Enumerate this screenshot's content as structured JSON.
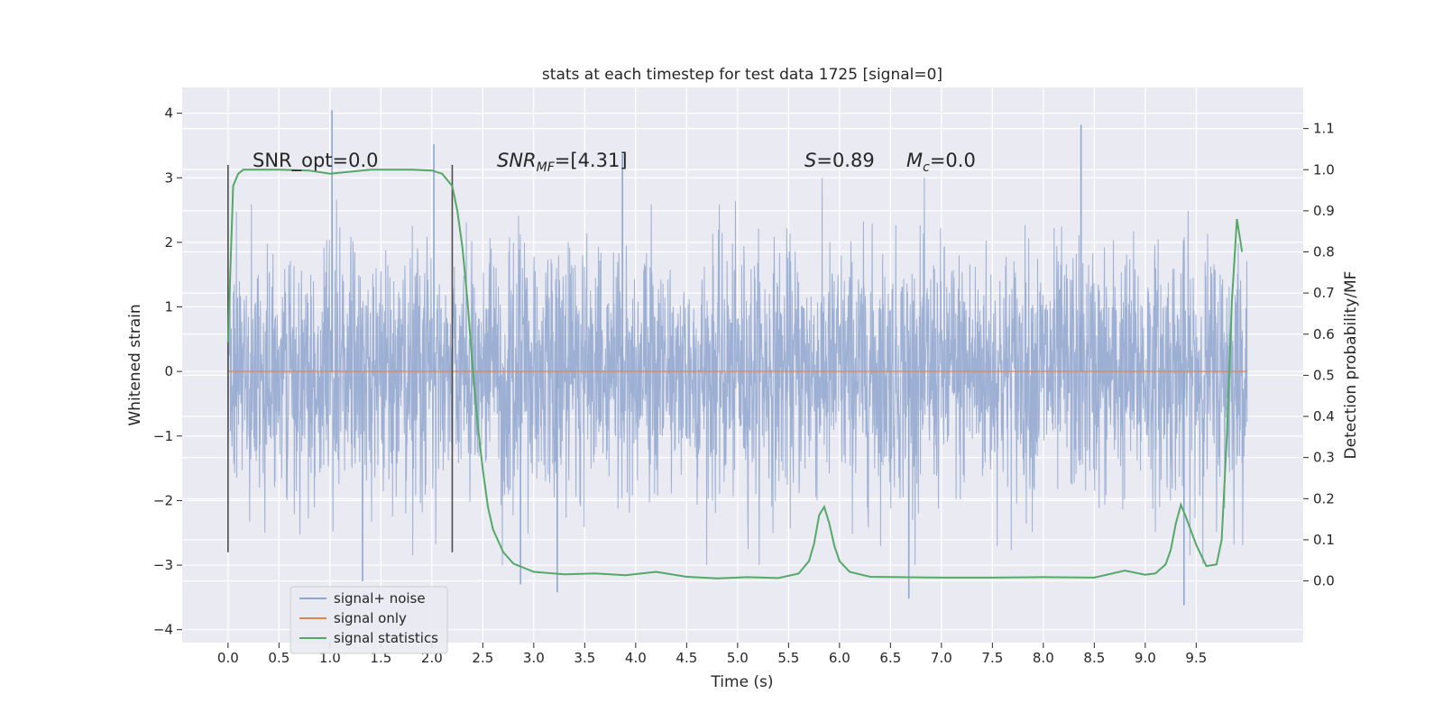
{
  "chart_data": {
    "type": "line",
    "title": "stats at each timestep for test data 1725 [signal=0]",
    "xlabel": "Time (s)",
    "ylabel": "Whitened strain",
    "y2label": "Detection probability/MF",
    "xlim": [
      -0.45,
      10.55
    ],
    "ylim": [
      -4.2,
      4.4
    ],
    "y2lim": [
      -0.15,
      1.2
    ],
    "xticks": [
      "0.0",
      "0.5",
      "1.0",
      "1.5",
      "2.0",
      "2.5",
      "3.0",
      "3.5",
      "4.0",
      "4.5",
      "5.0",
      "5.5",
      "6.0",
      "6.5",
      "7.0",
      "7.5",
      "8.0",
      "8.5",
      "9.0",
      "9.5"
    ],
    "yticks": [
      "4",
      "3",
      "2",
      "1",
      "0",
      "−1",
      "−2",
      "−3",
      "−4"
    ],
    "y2ticks": [
      "1.1",
      "1.0",
      "0.9",
      "0.8",
      "0.7",
      "0.6",
      "0.5",
      "0.4",
      "0.3",
      "0.2",
      "0.1",
      "0.0"
    ],
    "grid": true,
    "legend_position": "lower-left",
    "annotations": {
      "snr_opt": "SNR_opt=0.0",
      "snr_mf_main": "SNR",
      "snr_mf_sub": "MF",
      "snr_mf_value": "=[4.31]",
      "s_main": "S",
      "s_value": "=0.89",
      "mc_main": "M",
      "mc_sub": "c",
      "mc_value": "=0.0"
    },
    "window_markers_x": [
      0.0,
      2.2
    ],
    "series": [
      {
        "name": "signal+ noise",
        "color": "#8fa6cf",
        "description_points": {
          "x_range": [
            0.0,
            10.0
          ],
          "dense_band": [
            -1.4,
            1.4
          ],
          "peaks": [
            [
              1.02,
              4.05
            ],
            [
              2.02,
              3.52
            ],
            [
              8.37,
              3.82
            ],
            [
              3.87,
              3.37
            ],
            [
              9.38,
              -3.62
            ],
            [
              1.32,
              -3.25
            ],
            [
              6.68,
              -3.52
            ],
            [
              3.23,
              -3.42
            ],
            [
              2.87,
              -3.3
            ]
          ]
        }
      },
      {
        "name": "signal only",
        "color": "#dd8452",
        "values_x": [
          0.0,
          10.0
        ],
        "values_y": [
          0.0,
          0.0
        ]
      },
      {
        "name": "signal statistics",
        "color": "#55a868",
        "x": [
          0.0,
          0.05,
          0.1,
          0.15,
          0.2,
          0.3,
          0.5,
          0.8,
          1.0,
          1.2,
          1.4,
          1.6,
          1.8,
          2.0,
          2.1,
          2.2,
          2.25,
          2.3,
          2.35,
          2.4,
          2.45,
          2.5,
          2.55,
          2.6,
          2.7,
          2.8,
          3.0,
          3.3,
          3.6,
          3.9,
          4.2,
          4.5,
          4.8,
          5.1,
          5.4,
          5.6,
          5.7,
          5.75,
          5.8,
          5.85,
          5.9,
          5.95,
          6.0,
          6.1,
          6.3,
          6.6,
          7.0,
          7.5,
          8.0,
          8.5,
          8.8,
          9.0,
          9.1,
          9.2,
          9.25,
          9.3,
          9.35,
          9.4,
          9.5,
          9.6,
          9.7,
          9.75,
          9.8,
          9.85,
          9.9,
          9.95
        ],
        "y": [
          0.58,
          0.96,
          0.99,
          1.0,
          1.0,
          1.0,
          1.0,
          0.998,
          0.99,
          0.995,
          1.0,
          1.0,
          1.0,
          0.998,
          0.99,
          0.96,
          0.9,
          0.81,
          0.68,
          0.52,
          0.38,
          0.27,
          0.18,
          0.125,
          0.07,
          0.042,
          0.022,
          0.016,
          0.018,
          0.014,
          0.022,
          0.01,
          0.006,
          0.009,
          0.007,
          0.018,
          0.048,
          0.09,
          0.16,
          0.18,
          0.14,
          0.085,
          0.048,
          0.022,
          0.01,
          0.009,
          0.008,
          0.008,
          0.009,
          0.008,
          0.025,
          0.015,
          0.018,
          0.04,
          0.075,
          0.14,
          0.185,
          0.155,
          0.088,
          0.036,
          0.04,
          0.1,
          0.35,
          0.68,
          0.88,
          0.8
        ]
      }
    ]
  }
}
